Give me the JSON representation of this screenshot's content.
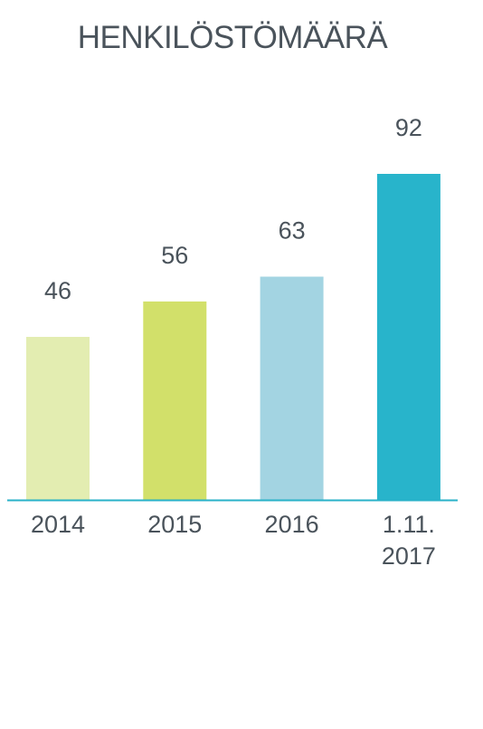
{
  "chart_data": {
    "type": "bar",
    "title": "HENKILÖSTÖMÄÄRÄ",
    "categories": [
      [
        "2014"
      ],
      [
        "2015"
      ],
      [
        "2016"
      ],
      [
        "1.11.",
        "2017"
      ]
    ],
    "values": [
      46,
      56,
      63,
      92
    ],
    "data_labels": [
      "46",
      "56",
      "63",
      "92"
    ],
    "colors": [
      "#e3edb1",
      "#d2e06a",
      "#a3d4e2",
      "#28b4cb"
    ],
    "axis_color": "#29b2c8",
    "ylim": [
      0,
      92
    ],
    "grid": false,
    "legend": "none"
  }
}
